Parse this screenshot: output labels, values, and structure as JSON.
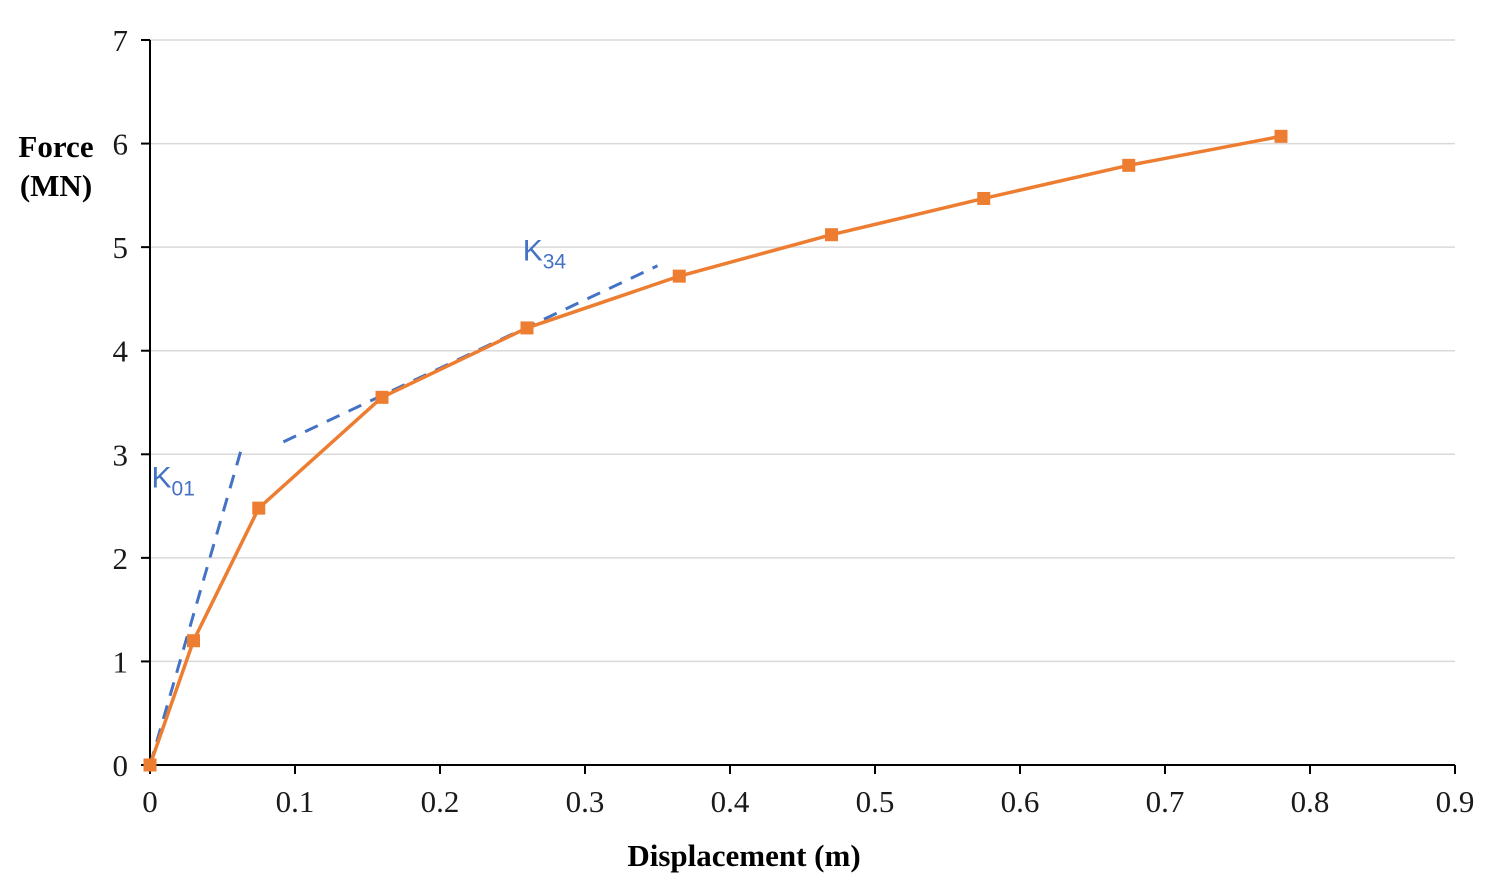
{
  "chart_data": {
    "type": "line",
    "title": "",
    "xlabel": "Displacement (m)",
    "ylabel_lines": [
      "Force",
      "(MN)"
    ],
    "xlim": [
      0,
      0.9
    ],
    "ylim": [
      0,
      7
    ],
    "grid": "horizontal",
    "grid_color": "#d9d9d9",
    "axis_color": "#000000",
    "tick_label_color": "#1a1a1a",
    "xticks": [
      {
        "value": 0,
        "label": "0"
      },
      {
        "value": 0.1,
        "label": "0.1"
      },
      {
        "value": 0.2,
        "label": "0.2"
      },
      {
        "value": 0.3,
        "label": "0.3"
      },
      {
        "value": 0.4,
        "label": "0.4"
      },
      {
        "value": 0.5,
        "label": "0.5"
      },
      {
        "value": 0.6,
        "label": "0.6"
      },
      {
        "value": 0.7,
        "label": "0.7"
      },
      {
        "value": 0.8,
        "label": "0.8"
      },
      {
        "value": 0.9,
        "label": "0.9"
      }
    ],
    "yticks": [
      {
        "value": 0,
        "label": "0"
      },
      {
        "value": 1,
        "label": "1"
      },
      {
        "value": 2,
        "label": "2"
      },
      {
        "value": 3,
        "label": "3"
      },
      {
        "value": 4,
        "label": "4"
      },
      {
        "value": 5,
        "label": "5"
      },
      {
        "value": 6,
        "label": "6"
      },
      {
        "value": 7,
        "label": "7"
      }
    ],
    "series": [
      {
        "name": "force-displacement-curve",
        "color": "#ed7d31",
        "marker": "square",
        "marker_size": 13,
        "line_width": 3.5,
        "x": [
          0,
          0.03,
          0.075,
          0.16,
          0.26,
          0.365,
          0.47,
          0.575,
          0.675,
          0.78
        ],
        "y": [
          0,
          1.2,
          2.48,
          3.55,
          4.22,
          4.72,
          5.12,
          5.47,
          5.79,
          6.07
        ]
      }
    ],
    "annotations": [
      {
        "name": "K01-tangent",
        "type": "dashed-line",
        "color": "#4472c4",
        "line_width": 3,
        "dash": "14 10",
        "points": [
          [
            0,
            0
          ],
          [
            0.063,
            3.05
          ]
        ],
        "label": {
          "main": "K",
          "sub": "01",
          "x": 0.016,
          "y": 2.68
        }
      },
      {
        "name": "K34-tangent",
        "type": "dashed-line",
        "color": "#4472c4",
        "line_width": 3,
        "dash": "14 10",
        "points": [
          [
            0.092,
            3.12
          ],
          [
            0.35,
            4.82
          ]
        ],
        "label": {
          "main": "K",
          "sub": "34",
          "x": 0.272,
          "y": 4.87
        }
      }
    ],
    "legend": "none"
  }
}
